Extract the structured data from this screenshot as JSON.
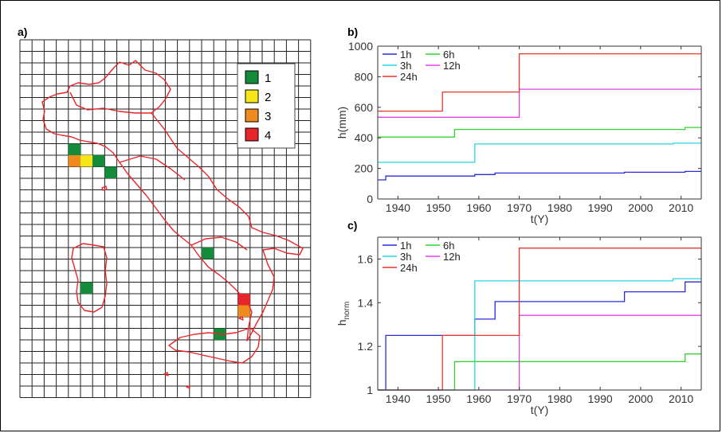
{
  "panel_a": {
    "label": "a)",
    "legend": [
      {
        "label": "1",
        "color": "#138b3a"
      },
      {
        "label": "2",
        "color": "#f7e51c"
      },
      {
        "label": "3",
        "color": "#ef8a1e"
      },
      {
        "label": "4",
        "color": "#e6262a"
      }
    ],
    "grid": {
      "cols": 24,
      "rows": 31
    },
    "cells": [
      {
        "col": 4,
        "row": 9,
        "cls": 1
      },
      {
        "col": 4,
        "row": 10,
        "cls": 3
      },
      {
        "col": 5,
        "row": 10,
        "cls": 2
      },
      {
        "col": 6,
        "row": 10,
        "cls": 1
      },
      {
        "col": 7,
        "row": 11,
        "cls": 1
      },
      {
        "col": 15,
        "row": 18,
        "cls": 1
      },
      {
        "col": 5,
        "row": 21,
        "cls": 1
      },
      {
        "col": 18,
        "row": 22,
        "cls": 4
      },
      {
        "col": 18,
        "row": 23,
        "cls": 3
      },
      {
        "col": 16,
        "row": 25,
        "cls": 1
      }
    ]
  },
  "chart_data": [
    {
      "type": "line",
      "label": "b)",
      "xlabel": "t(Y)",
      "ylabel": "h(mm)",
      "xlim": [
        1935,
        2015
      ],
      "ylim": [
        0,
        1000
      ],
      "xticks": [
        1940,
        1950,
        1960,
        1970,
        1980,
        1990,
        2000,
        2010
      ],
      "yticks": [
        0,
        200,
        400,
        600,
        800,
        1000
      ],
      "legend": "top-left",
      "series": [
        {
          "name": "1h",
          "color": "#2b2bd9",
          "x": [
            1935,
            1937,
            1937,
            1959,
            1959,
            1964,
            1964,
            1996,
            1996,
            2011,
            2011,
            2015
          ],
          "y": [
            125,
            125,
            150,
            150,
            160,
            160,
            170,
            170,
            175,
            175,
            180,
            180
          ]
        },
        {
          "name": "3h",
          "color": "#27d7e0",
          "x": [
            1935,
            1959,
            1959,
            2008,
            2008,
            2015
          ],
          "y": [
            240,
            240,
            360,
            360,
            365,
            365
          ]
        },
        {
          "name": "6h",
          "color": "#33d433",
          "x": [
            1935,
            1954,
            1954,
            2011,
            2011,
            2015
          ],
          "y": [
            405,
            405,
            455,
            455,
            468,
            468
          ]
        },
        {
          "name": "12h",
          "color": "#e040e0",
          "x": [
            1935,
            1970,
            1970,
            2015
          ],
          "y": [
            535,
            535,
            718,
            718
          ]
        },
        {
          "name": "24h",
          "color": "#e8392e",
          "x": [
            1935,
            1951,
            1951,
            1970,
            1970,
            2015
          ],
          "y": [
            575,
            575,
            700,
            700,
            950,
            950
          ]
        }
      ]
    },
    {
      "type": "line",
      "label": "c)",
      "xlabel": "t(Y)",
      "ylabel": "h",
      "ylabel_sub": "norm",
      "xlim": [
        1935,
        2015
      ],
      "ylim": [
        1,
        1.7
      ],
      "xticks": [
        1940,
        1950,
        1960,
        1970,
        1980,
        1990,
        2000,
        2010
      ],
      "yticks": [
        1,
        1.2,
        1.4,
        1.6
      ],
      "legend": "top-left",
      "series": [
        {
          "name": "1h",
          "color": "#2b2bd9",
          "x": [
            1935,
            1937,
            1937,
            1959,
            1959,
            1964,
            1964,
            1996,
            1996,
            2011,
            2011,
            2015
          ],
          "y": [
            1.0,
            1.0,
            1.25,
            1.25,
            1.325,
            1.325,
            1.405,
            1.405,
            1.45,
            1.45,
            1.495,
            1.495
          ]
        },
        {
          "name": "3h",
          "color": "#27d7e0",
          "x": [
            1935,
            1959,
            1959,
            2008,
            2008,
            2015
          ],
          "y": [
            1.0,
            1.0,
            1.5,
            1.5,
            1.51,
            1.51
          ]
        },
        {
          "name": "6h",
          "color": "#33d433",
          "x": [
            1935,
            1954,
            1954,
            2011,
            2011,
            2015
          ],
          "y": [
            1.0,
            1.0,
            1.13,
            1.13,
            1.165,
            1.165
          ]
        },
        {
          "name": "12h",
          "color": "#e040e0",
          "x": [
            1935,
            1970,
            1970,
            2015
          ],
          "y": [
            1.0,
            1.0,
            1.342,
            1.342
          ]
        },
        {
          "name": "24h",
          "color": "#e8392e",
          "x": [
            1935,
            1951,
            1951,
            1970,
            1970,
            2015
          ],
          "y": [
            1.0,
            1.0,
            1.25,
            1.25,
            1.65,
            1.65
          ]
        }
      ]
    }
  ]
}
